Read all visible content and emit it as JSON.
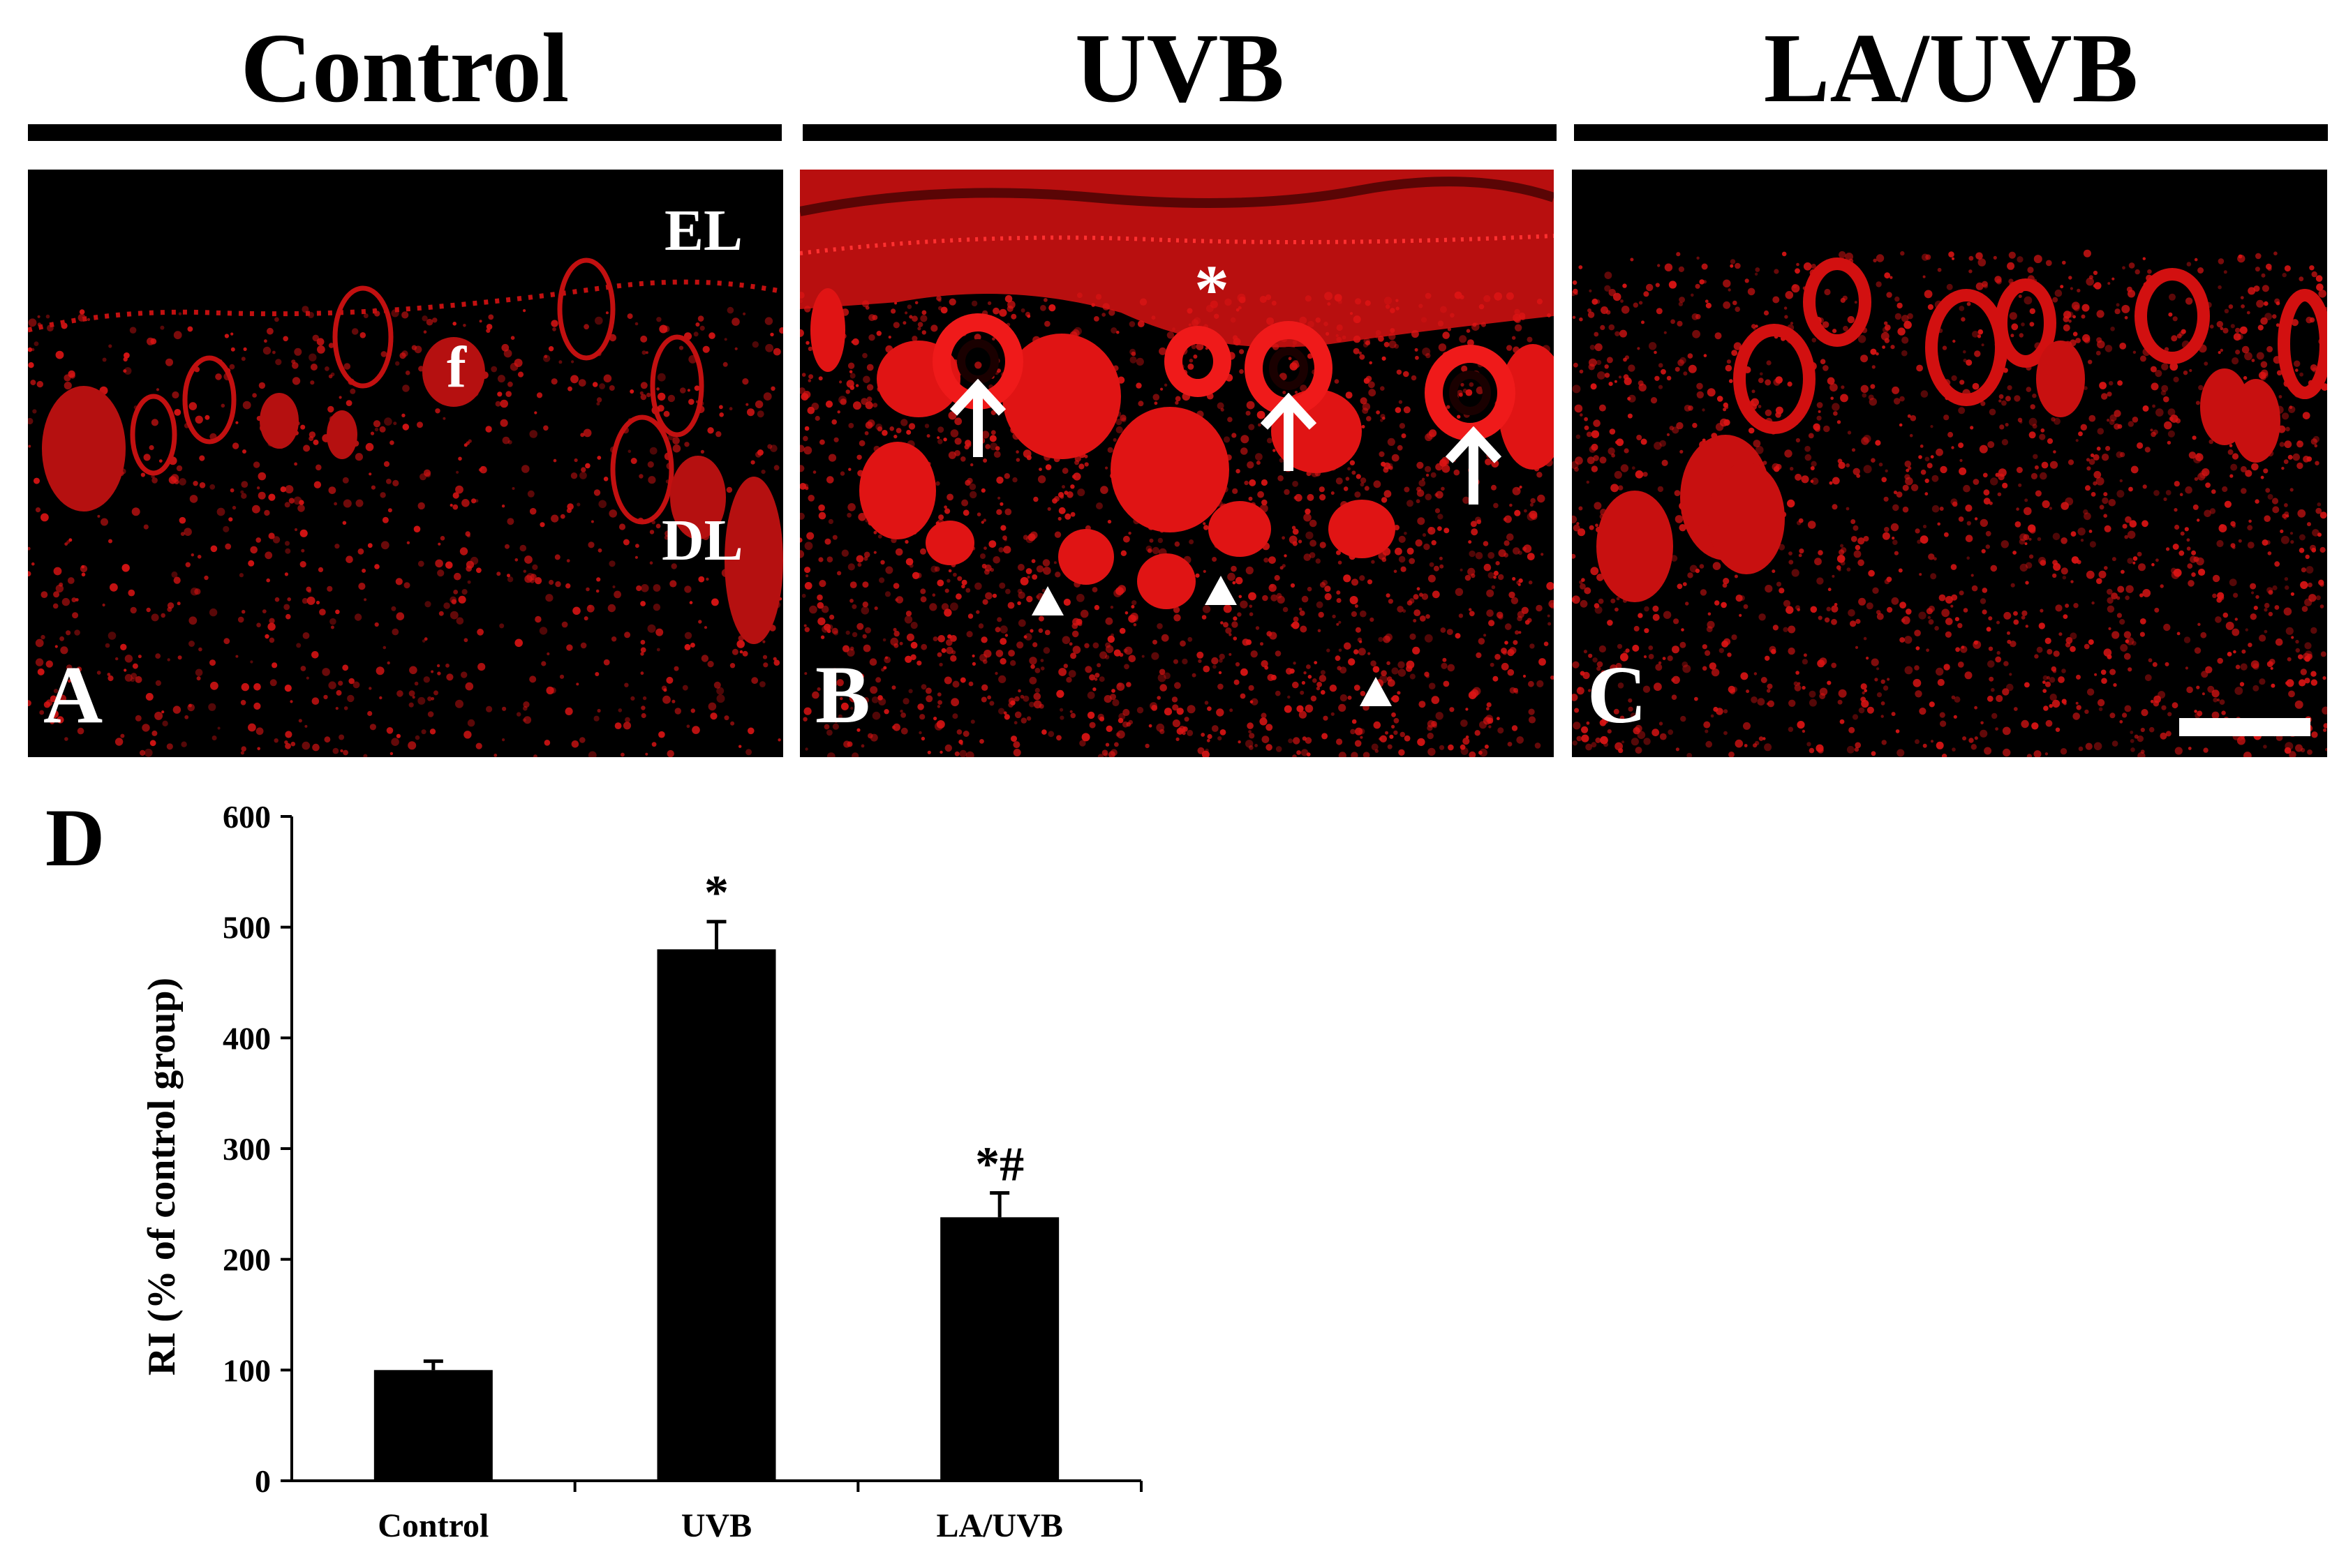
{
  "groups": [
    {
      "title": "Control"
    },
    {
      "title": "UVB"
    },
    {
      "title": "LA/UVB"
    }
  ],
  "panels": [
    {
      "letter": "A",
      "labels": [
        "EL",
        "f",
        "DL"
      ]
    },
    {
      "letter": "B",
      "labels": [
        "*"
      ]
    },
    {
      "letter": "C",
      "labels": []
    }
  ],
  "panel_colors": {
    "stain": "#e01010",
    "background": "#000000",
    "markers": "#ffffff"
  },
  "icons": {
    "arrow": "up-arrow-icon",
    "arrowhead": "triangle-icon"
  },
  "chart_letter": "D",
  "chart_data": {
    "type": "bar",
    "categories": [
      "Control",
      "UVB",
      "LA/UVB"
    ],
    "values": [
      100,
      480,
      238
    ],
    "errors": [
      8,
      25,
      22
    ],
    "annotations": [
      "",
      "*",
      "*#"
    ],
    "xlabel": "",
    "ylabel": "RI  (% of control group)",
    "ylim": [
      0,
      600
    ],
    "yticks": [
      0,
      100,
      200,
      300,
      400,
      500,
      600
    ],
    "bar_color": "#000000",
    "grid": false
  }
}
